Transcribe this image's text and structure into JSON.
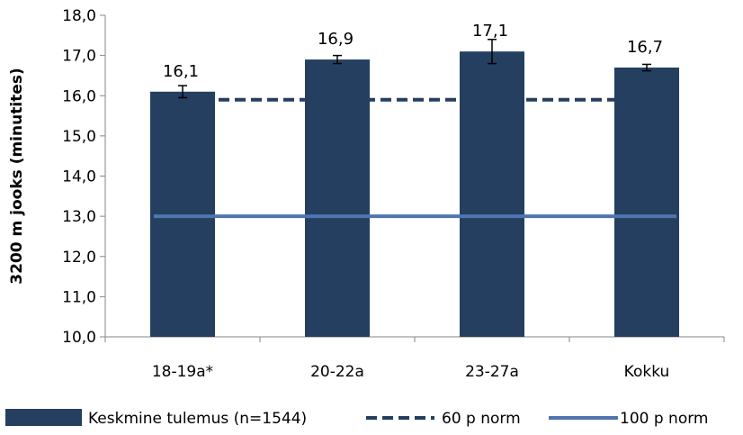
{
  "chart_data": {
    "type": "bar",
    "categories": [
      "18-19a*",
      "20-22a",
      "23-27a",
      "Kokku"
    ],
    "series": [
      {
        "name": "Keskmine tulemus (n=1544)",
        "kind": "bar",
        "color": "#243F60",
        "values": [
          16.1,
          16.9,
          17.1,
          16.7
        ],
        "value_labels": [
          "16,1",
          "16,9",
          "17,1",
          "16,7"
        ],
        "error": [
          0.15,
          0.1,
          0.3,
          0.08
        ]
      },
      {
        "name": "60 p norm",
        "kind": "line",
        "style": "dashed",
        "color": "#243F60",
        "values": [
          15.9,
          15.9,
          15.9,
          15.9
        ]
      },
      {
        "name": "100 p norm",
        "kind": "line",
        "style": "solid",
        "color": "#4F74B0",
        "values": [
          13.0,
          13.0,
          13.0,
          13.0
        ]
      }
    ],
    "ylabel": "3200 m jooks (minutites)",
    "xlabel": "",
    "ylim": [
      10,
      18
    ],
    "yticks": [
      10,
      11,
      12,
      13,
      14,
      15,
      16,
      17,
      18
    ],
    "ytick_labels": [
      "10,0",
      "11,0",
      "12,0",
      "13,0",
      "14,0",
      "15,0",
      "16,0",
      "17,0",
      "18,0"
    ],
    "grid": false,
    "legend_position": "bottom"
  }
}
